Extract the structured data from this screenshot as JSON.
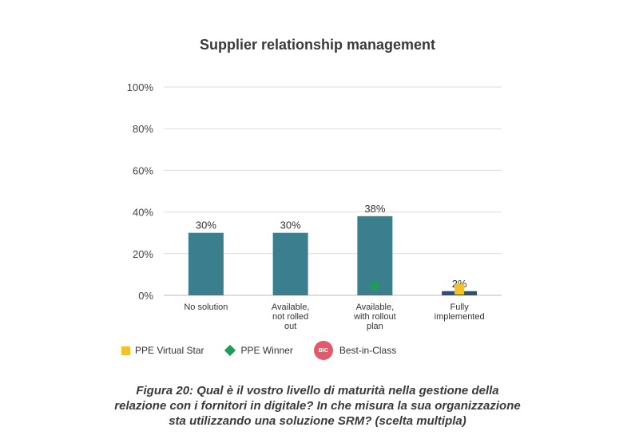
{
  "chart_data": {
    "type": "bar",
    "title": "Supplier relationship management",
    "categories": [
      [
        "No solution"
      ],
      [
        "Available,",
        "not rolled",
        "out"
      ],
      [
        "Available,",
        "with rollout",
        "plan"
      ],
      [
        "Fully",
        "implemented"
      ]
    ],
    "values": [
      30,
      30,
      38,
      2
    ],
    "value_labels": [
      "30%",
      "30%",
      "38%",
      "2%"
    ],
    "yticks": [
      "0%",
      "20%",
      "40%",
      "60%",
      "80%",
      "100%"
    ],
    "ylim": [
      0,
      100
    ],
    "grid": true,
    "legend_position": "bottom-left",
    "markers": [
      {
        "category_index": 2,
        "type": "PPE Winner",
        "value": 4
      },
      {
        "category_index": 3,
        "type": "PPE Virtual Star",
        "value": 3
      }
    ],
    "colors": {
      "bar": "#3b7f8f",
      "bar_highlight": "#2f4f7a",
      "grid": "#dddddd",
      "virtual_star": "#f2c12e",
      "winner": "#1f9d55",
      "bic": "#e05a6b"
    }
  },
  "legend": {
    "virtual_star": "PPE Virtual Star",
    "winner": "PPE Winner",
    "bic_badge": "BIC",
    "bic": "Best-in-Class"
  },
  "caption": {
    "lines": [
      "Figura 20: Qual è il vostro livello di maturità nella gestione della",
      "relazione con i fornitori in digitale? In che misura la sua organizzazione",
      "sta utilizzando una soluzione SRM? (scelta multipla)"
    ]
  }
}
